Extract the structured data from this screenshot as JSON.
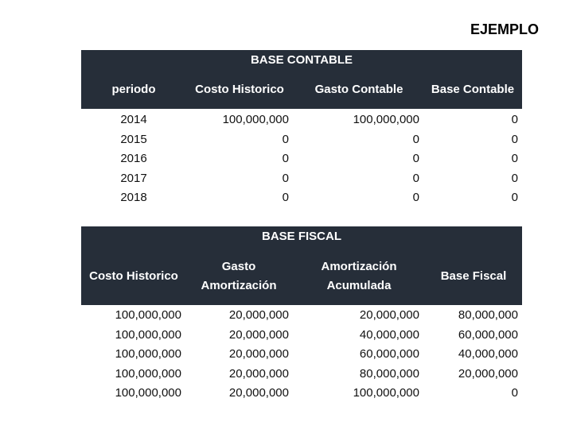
{
  "title": "EJEMPLO",
  "tables": [
    {
      "title": "BASE CONTABLE",
      "headers": [
        [
          "periodo"
        ],
        [
          "Costo Historico"
        ],
        [
          "Gasto Contable"
        ],
        [
          "Base Contable"
        ]
      ],
      "rows": [
        [
          "2014",
          "100,000,000",
          "100,000,000",
          "0"
        ],
        [
          "2015",
          "0",
          "0",
          "0"
        ],
        [
          "2016",
          "0",
          "0",
          "0"
        ],
        [
          "2017",
          "0",
          "0",
          "0"
        ],
        [
          "2018",
          "0",
          "0",
          "0"
        ]
      ]
    },
    {
      "title": "BASE FISCAL",
      "headers": [
        [
          "Costo Historico"
        ],
        [
          "Gasto",
          "Amortización"
        ],
        [
          "Amortización",
          "Acumulada"
        ],
        [
          "Base Fiscal"
        ]
      ],
      "rows": [
        [
          "100,000,000",
          "20,000,000",
          "20,000,000",
          "80,000,000"
        ],
        [
          "100,000,000",
          "20,000,000",
          "40,000,000",
          "60,000,000"
        ],
        [
          "100,000,000",
          "20,000,000",
          "60,000,000",
          "40,000,000"
        ],
        [
          "100,000,000",
          "20,000,000",
          "80,000,000",
          "20,000,000"
        ],
        [
          "100,000,000",
          "20,000,000",
          "100,000,000",
          "0"
        ]
      ]
    }
  ]
}
